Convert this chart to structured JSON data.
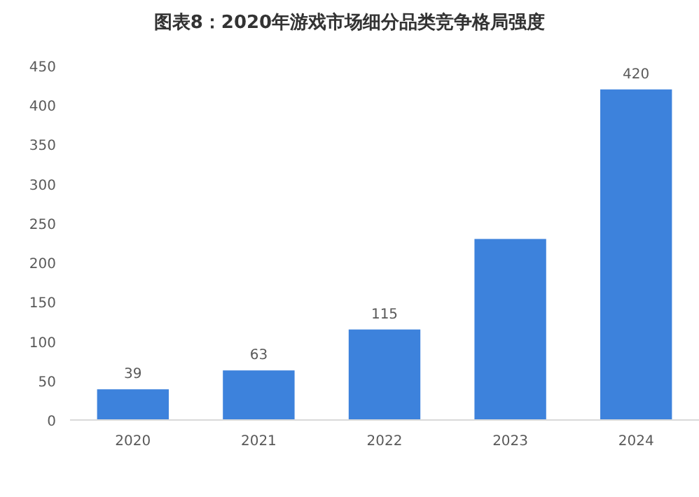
{
  "chart_data": {
    "type": "bar",
    "title": "图表8：2020年游戏市场细分品类竞争格局强度",
    "categories": [
      "2020",
      "2021",
      "2022",
      "2023",
      "2024"
    ],
    "values": [
      39,
      63,
      115,
      230,
      420
    ],
    "value_labels": [
      "39",
      "63",
      "115",
      null,
      "420"
    ],
    "color": "#3d82dc",
    "ylim": [
      0,
      450
    ],
    "yticks": [
      0,
      50,
      100,
      150,
      200,
      250,
      300,
      350,
      400,
      450
    ]
  }
}
